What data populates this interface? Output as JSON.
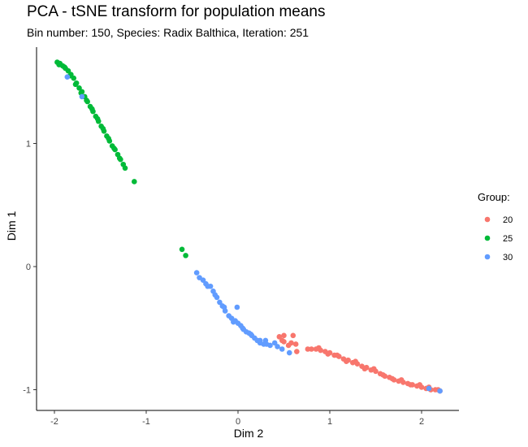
{
  "chart_data": {
    "type": "scatter",
    "title": "PCA - tSNE transform for population means",
    "subtitle": "Bin number: 150, Species: Radix Balthica, Iteration: 251",
    "xlabel": "Dim 2",
    "ylabel": "Dim 1",
    "xlim": [
      -2.2,
      2.4
    ],
    "ylim": [
      -1.1,
      1.8
    ],
    "xticks": [
      "-2",
      "-1",
      "0",
      "1",
      "2"
    ],
    "yticks": [
      "-1",
      "0",
      "1"
    ],
    "grid": false,
    "legend": {
      "title": "Group:",
      "placement": "right"
    },
    "series": [
      {
        "name": "20",
        "color": "#F8766D",
        "points": [
          [
            0.45,
            -0.57
          ],
          [
            0.5,
            -0.61
          ],
          [
            0.5,
            -0.56
          ],
          [
            0.55,
            -0.64
          ],
          [
            0.6,
            -0.56
          ],
          [
            0.63,
            -0.63
          ],
          [
            0.64,
            -0.69
          ],
          [
            0.58,
            -0.62
          ],
          [
            0.48,
            -0.6
          ],
          [
            0.76,
            -0.67
          ],
          [
            0.8,
            -0.67
          ],
          [
            0.85,
            -0.67
          ],
          [
            0.9,
            -0.68
          ],
          [
            0.95,
            -0.69
          ],
          [
            1.0,
            -0.7
          ],
          [
            1.05,
            -0.72
          ],
          [
            1.1,
            -0.73
          ],
          [
            1.15,
            -0.75
          ],
          [
            1.2,
            -0.76
          ],
          [
            1.25,
            -0.78
          ],
          [
            1.3,
            -0.79
          ],
          [
            1.35,
            -0.81
          ],
          [
            1.4,
            -0.82
          ],
          [
            1.45,
            -0.84
          ],
          [
            1.5,
            -0.85
          ],
          [
            1.55,
            -0.87
          ],
          [
            1.6,
            -0.89
          ],
          [
            1.65,
            -0.9
          ],
          [
            1.7,
            -0.92
          ],
          [
            1.75,
            -0.93
          ],
          [
            1.8,
            -0.94
          ],
          [
            1.85,
            -0.95
          ],
          [
            1.9,
            -0.96
          ],
          [
            1.95,
            -0.97
          ],
          [
            2.0,
            -0.98
          ],
          [
            2.05,
            -0.99
          ],
          [
            2.1,
            -1.0
          ],
          [
            2.15,
            -1.0
          ],
          [
            2.2,
            -1.01
          ],
          [
            0.88,
            -0.66
          ],
          [
            0.98,
            -0.71
          ],
          [
            1.08,
            -0.72
          ],
          [
            1.18,
            -0.77
          ],
          [
            1.28,
            -0.77
          ],
          [
            1.38,
            -0.83
          ],
          [
            1.48,
            -0.83
          ],
          [
            1.58,
            -0.88
          ],
          [
            1.68,
            -0.91
          ],
          [
            1.78,
            -0.92
          ],
          [
            1.88,
            -0.96
          ],
          [
            1.98,
            -0.96
          ],
          [
            2.08,
            -0.98
          ],
          [
            2.18,
            -1.0
          ]
        ]
      },
      {
        "name": "25",
        "color": "#00BA38",
        "points": [
          [
            -1.97,
            1.66
          ],
          [
            -1.94,
            1.65
          ],
          [
            -1.91,
            1.63
          ],
          [
            -1.88,
            1.61
          ],
          [
            -1.85,
            1.59
          ],
          [
            -1.82,
            1.56
          ],
          [
            -1.79,
            1.53
          ],
          [
            -1.76,
            1.49
          ],
          [
            -1.73,
            1.45
          ],
          [
            -1.7,
            1.42
          ],
          [
            -1.67,
            1.38
          ],
          [
            -1.64,
            1.34
          ],
          [
            -1.61,
            1.3
          ],
          [
            -1.58,
            1.26
          ],
          [
            -1.55,
            1.22
          ],
          [
            -1.52,
            1.18
          ],
          [
            -1.49,
            1.14
          ],
          [
            -1.46,
            1.1
          ],
          [
            -1.43,
            1.06
          ],
          [
            -1.4,
            1.02
          ],
          [
            -1.37,
            0.98
          ],
          [
            -1.34,
            0.95
          ],
          [
            -1.31,
            0.91
          ],
          [
            -1.28,
            0.87
          ],
          [
            -1.25,
            0.83
          ],
          [
            -1.23,
            0.8
          ],
          [
            -1.95,
            1.64
          ],
          [
            -1.89,
            1.62
          ],
          [
            -1.83,
            1.55
          ],
          [
            -1.77,
            1.48
          ],
          [
            -1.71,
            1.41
          ],
          [
            -1.65,
            1.35
          ],
          [
            -1.59,
            1.28
          ],
          [
            -1.53,
            1.2
          ],
          [
            -1.47,
            1.12
          ],
          [
            -1.41,
            1.04
          ],
          [
            -1.35,
            0.96
          ],
          [
            -1.29,
            0.88
          ],
          [
            -1.13,
            0.69
          ],
          [
            -0.61,
            0.14
          ],
          [
            -0.57,
            0.09
          ]
        ]
      },
      {
        "name": "30",
        "color": "#619CFF",
        "points": [
          [
            -1.86,
            1.54
          ],
          [
            -1.7,
            1.38
          ],
          [
            -0.45,
            -0.05
          ],
          [
            -0.42,
            -0.09
          ],
          [
            -0.38,
            -0.11
          ],
          [
            -0.33,
            -0.16
          ],
          [
            -0.3,
            -0.16
          ],
          [
            -0.27,
            -0.2
          ],
          [
            -0.23,
            -0.25
          ],
          [
            -0.2,
            -0.29
          ],
          [
            -0.17,
            -0.32
          ],
          [
            -0.14,
            -0.36
          ],
          [
            -0.1,
            -0.4
          ],
          [
            -0.07,
            -0.42
          ],
          [
            -0.03,
            -0.44
          ],
          [
            0.0,
            -0.46
          ],
          [
            0.03,
            -0.48
          ],
          [
            0.06,
            -0.51
          ],
          [
            0.09,
            -0.53
          ],
          [
            0.12,
            -0.54
          ],
          [
            0.15,
            -0.56
          ],
          [
            0.18,
            -0.58
          ],
          [
            0.21,
            -0.6
          ],
          [
            0.24,
            -0.62
          ],
          [
            0.28,
            -0.63
          ],
          [
            0.31,
            -0.63
          ],
          [
            0.35,
            -0.64
          ],
          [
            0.4,
            -0.62
          ],
          [
            0.43,
            -0.65
          ],
          [
            0.48,
            -0.67
          ],
          [
            0.56,
            -0.7
          ],
          [
            -0.01,
            -0.33
          ],
          [
            -0.35,
            -0.14
          ],
          [
            -0.25,
            -0.23
          ],
          [
            -0.15,
            -0.33
          ],
          [
            -0.05,
            -0.45
          ],
          [
            0.05,
            -0.5
          ],
          [
            0.14,
            -0.55
          ],
          [
            0.24,
            -0.6
          ],
          [
            0.3,
            -0.6
          ],
          [
            2.08,
            -0.99
          ],
          [
            2.2,
            -1.01
          ]
        ]
      }
    ]
  }
}
